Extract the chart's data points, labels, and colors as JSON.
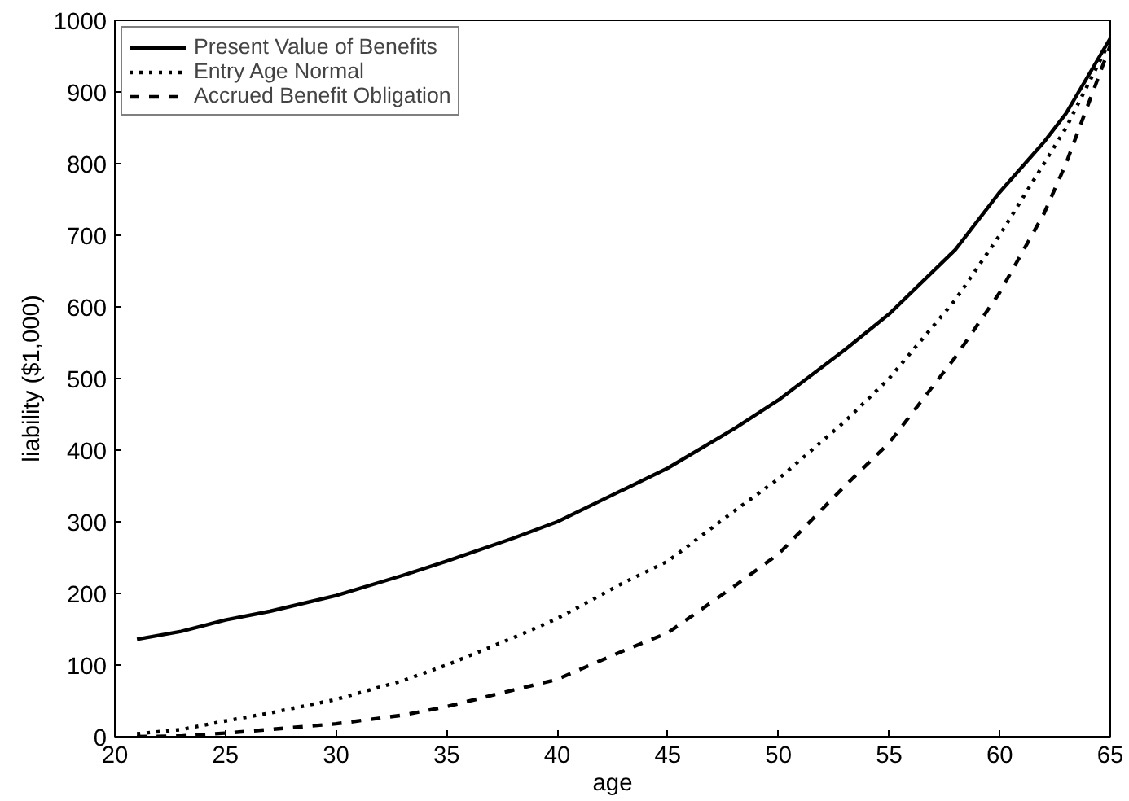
{
  "chart_data": {
    "type": "line",
    "xlabel": "age",
    "ylabel": "liability ($1,000)",
    "x": [
      21,
      23,
      25,
      27,
      30,
      33,
      35,
      38,
      40,
      43,
      45,
      48,
      50,
      53,
      55,
      58,
      60,
      62,
      63,
      65
    ],
    "xlim": [
      20,
      65
    ],
    "xticks": [
      20,
      25,
      30,
      35,
      40,
      45,
      50,
      55,
      60,
      65
    ],
    "ylim": [
      0,
      1000
    ],
    "yticks": [
      0,
      100,
      200,
      300,
      400,
      500,
      600,
      700,
      800,
      900,
      1000
    ],
    "grid": false,
    "legend": "top left",
    "marker": "none",
    "series": [
      {
        "name": "Present Value of Benefits",
        "color": "#000000",
        "line_style": "solid",
        "values": [
          136,
          147,
          163,
          175,
          197,
          225,
          245,
          277,
          300,
          345,
          375,
          430,
          470,
          540,
          590,
          680,
          760,
          830,
          870,
          975
        ]
      },
      {
        "name": "Entry Age Normal",
        "color": "#000000",
        "line_style": "dotted",
        "values": [
          4,
          10,
          22,
          33,
          52,
          78,
          100,
          138,
          165,
          215,
          245,
          315,
          360,
          440,
          500,
          610,
          700,
          800,
          850,
          972
        ]
      },
      {
        "name": "Accrued Benefit Obligation",
        "color": "#000000",
        "line_style": "dashed",
        "values": [
          0,
          1,
          5,
          10,
          18,
          30,
          42,
          65,
          80,
          120,
          145,
          210,
          255,
          350,
          410,
          530,
          620,
          730,
          800,
          965
        ]
      }
    ]
  }
}
